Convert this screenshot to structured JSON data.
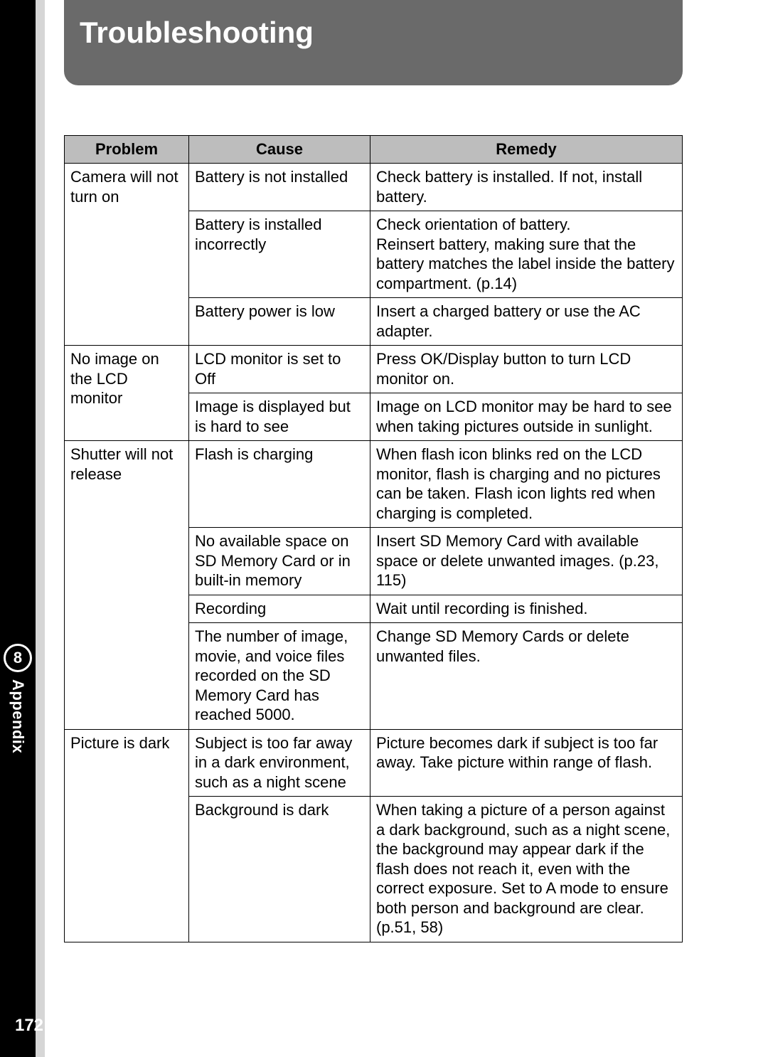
{
  "header": {
    "title": "Troubleshooting"
  },
  "sideTab": {
    "chapter": "8",
    "label": "Appendix"
  },
  "pageNumber": "172",
  "table": {
    "headers": [
      "Problem",
      "Cause",
      "Remedy"
    ],
    "rows": [
      {
        "problem": "Camera will not turn on",
        "problemRowspan": 3,
        "cause": "Battery is not installed",
        "remedy": "Check battery is installed. If not, install battery."
      },
      {
        "cause": "Battery is installed incorrectly",
        "remedy": "Check orientation of battery.\nReinsert battery, making sure that the battery matches the label inside the battery compartment. (p.14)"
      },
      {
        "cause": "Battery power is low",
        "remedy": "Insert a charged battery or use the AC adapter."
      },
      {
        "problem": "No image on the LCD monitor",
        "problemRowspan": 2,
        "cause": "LCD monitor is set to Off",
        "remedy": "Press OK/Display button to turn LCD monitor on."
      },
      {
        "cause": "Image is displayed but is hard to see",
        "remedy": "Image on LCD monitor may be hard to see when taking pictures outside in sunlight."
      },
      {
        "problem": "Shutter will not release",
        "problemRowspan": 4,
        "cause": "Flash is charging",
        "remedy": "When flash icon blinks red on the LCD monitor, flash is charging and no pictures can be taken. Flash icon lights red when charging is completed."
      },
      {
        "cause": "No available space on SD Memory Card or in built-in memory",
        "remedy": "Insert SD Memory Card with available space or delete unwanted images. (p.23, 115)"
      },
      {
        "cause": "Recording",
        "remedy": "Wait until recording is finished."
      },
      {
        "cause": "The number of image, movie, and voice files recorded on the SD Memory Card has reached 5000.",
        "remedy": "Change SD Memory Cards or delete unwanted files."
      },
      {
        "problem": "Picture is dark",
        "problemRowspan": 2,
        "cause": "Subject is too far away in a dark environment, such as a night scene",
        "remedy": "Picture becomes dark if subject is too far away. Take picture within range of flash."
      },
      {
        "cause": "Background is dark",
        "remedy": "When taking a picture of a person against a dark background, such as a night scene, the background may appear dark if the flash does not reach it, even with the correct exposure. Set to A   mode to ensure both person and background are clear. (p.51, 58)"
      }
    ]
  }
}
